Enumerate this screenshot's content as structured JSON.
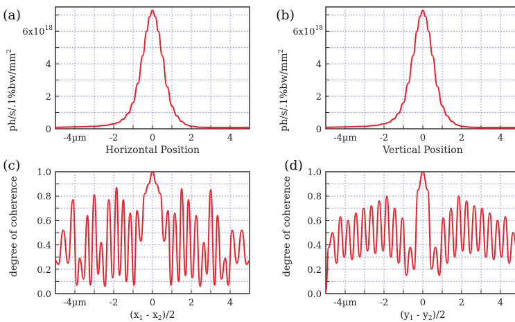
{
  "chart_data": [
    {
      "panel": "(a)",
      "type": "line",
      "xlabel": "Horizontal Position",
      "ylabel": "ph/s/.1%bw/mm",
      "ylabel_sup": "2",
      "y_exponent_label": "6x10",
      "y_exponent_sup": "18",
      "xlim": [
        -5,
        5
      ],
      "ylim": [
        0,
        7.5e+18
      ],
      "xticks": [
        "-4µm",
        "-2",
        "0",
        "2",
        "4"
      ],
      "yticks": [
        "0",
        "2",
        "4",
        "6x10"
      ],
      "grid": true,
      "color": "#e8202a",
      "x": [
        -5,
        -4,
        -3,
        -2.5,
        -2,
        -1.75,
        -1.5,
        -1.25,
        -1,
        -0.75,
        -0.5,
        -0.3,
        -0.15,
        0,
        0.15,
        0.3,
        0.5,
        0.75,
        1,
        1.25,
        1.5,
        1.75,
        2,
        2.5,
        3,
        4,
        5
      ],
      "y": [
        1e+17,
        1.2e+17,
        1.5e+17,
        2e+17,
        3e+17,
        4e+17,
        6e+17,
        9.5e+17,
        1.6e+18,
        2.8e+18,
        4.5e+18,
        6e+18,
        6.9e+18,
        7.3e+18,
        6.9e+18,
        6e+18,
        4.5e+18,
        2.6e+18,
        1.4e+18,
        8e+17,
        4.5e+17,
        2.5e+17,
        1.5e+17,
        1e+17,
        8e+16,
        8e+16,
        8e+16
      ]
    },
    {
      "panel": "(b)",
      "type": "line",
      "xlabel": "Vertical Position",
      "ylabel": "ph/s/.1%bw/mm",
      "ylabel_sup": "2",
      "y_exponent_label": "6x10",
      "y_exponent_sup": "18",
      "xlim": [
        -5,
        5
      ],
      "ylim": [
        0,
        7.5e+18
      ],
      "xticks": [
        "-4µm",
        "-2",
        "0",
        "2",
        "4"
      ],
      "yticks": [
        "0",
        "2",
        "4",
        "6x10"
      ],
      "grid": true,
      "color": "#e8202a",
      "x": [
        -5,
        -4,
        -3,
        -2.5,
        -2,
        -1.75,
        -1.5,
        -1.25,
        -1,
        -0.75,
        -0.5,
        -0.3,
        -0.15,
        0,
        0.15,
        0.3,
        0.5,
        0.75,
        1,
        1.25,
        1.5,
        1.75,
        2,
        2.5,
        3,
        4,
        5
      ],
      "y": [
        1e+17,
        1.2e+17,
        1.5e+17,
        2e+17,
        3e+17,
        4e+17,
        6e+17,
        9.5e+17,
        1.6e+18,
        2.8e+18,
        4.5e+18,
        6e+18,
        6.9e+18,
        7.3e+18,
        6.9e+18,
        6e+18,
        4.5e+18,
        2.6e+18,
        1.4e+18,
        8e+17,
        4.5e+17,
        2.5e+17,
        1.5e+17,
        1e+17,
        8e+16,
        8e+16,
        8e+16
      ]
    },
    {
      "panel": "(c)",
      "type": "line",
      "xlabel": "(x",
      "xlabel_sub1": "1",
      "xlabel_mid": " - x",
      "xlabel_sub2": "2",
      "xlabel_end": ")/2",
      "ylabel": "degree of coherence",
      "xlim": [
        -5,
        5
      ],
      "ylim": [
        0,
        1.0
      ],
      "xticks": [
        "-4µm",
        "-2",
        "0",
        "2",
        "4"
      ],
      "yticks": [
        "0.0",
        "0.2",
        "0.4",
        "0.6",
        "0.8",
        "1.0"
      ],
      "grid": true,
      "color": "#e8202a",
      "x": [
        -5,
        -4.85,
        -4.6,
        -4.35,
        -4.1,
        -3.9,
        -3.75,
        -3.55,
        -3.35,
        -3.2,
        -3.0,
        -2.8,
        -2.65,
        -2.45,
        -2.25,
        -2.05,
        -1.85,
        -1.7,
        -1.5,
        -1.35,
        -1.15,
        -0.95,
        -0.8,
        -0.6,
        -0.4,
        -0.2,
        0,
        0.2,
        0.4,
        0.6,
        0.8,
        0.95,
        1.15,
        1.35,
        1.5,
        1.7,
        1.85,
        2.05,
        2.25,
        2.45,
        2.65,
        2.8,
        3.0,
        3.2,
        3.35,
        3.55,
        3.75,
        3.9,
        4.1,
        4.35,
        4.6,
        4.85,
        5
      ],
      "y": [
        0.27,
        0.24,
        0.52,
        0.25,
        0.77,
        0.07,
        0.29,
        0.12,
        0.64,
        0.07,
        0.81,
        0.16,
        0.42,
        0.06,
        0.77,
        0.13,
        0.87,
        0.15,
        0.77,
        0.1,
        0.66,
        0.07,
        0.68,
        0.43,
        0.82,
        0.9,
        1.0,
        0.9,
        0.82,
        0.43,
        0.68,
        0.07,
        0.66,
        0.1,
        0.86,
        0.15,
        0.77,
        0.13,
        0.64,
        0.06,
        0.42,
        0.16,
        0.85,
        0.07,
        0.64,
        0.12,
        0.29,
        0.07,
        0.52,
        0.25,
        0.52,
        0.24,
        0.27
      ]
    },
    {
      "panel": "(d)",
      "type": "line",
      "xlabel": "(y",
      "xlabel_sub1": "1",
      "xlabel_mid": " - y",
      "xlabel_sub2": "2",
      "xlabel_end": ")/2",
      "ylabel": "degree of coherence",
      "xlim": [
        -5,
        5
      ],
      "ylim": [
        0,
        1.0
      ],
      "xticks": [
        "-4µm",
        "-2",
        "0",
        "2",
        "4"
      ],
      "yticks": [
        "0.0",
        "0.2",
        "0.4",
        "0.6",
        "0.8",
        "1.0"
      ],
      "grid": true,
      "color": "#e8202a",
      "x": [
        -5,
        -4.85,
        -4.65,
        -4.45,
        -4.25,
        -4.05,
        -3.85,
        -3.65,
        -3.45,
        -3.25,
        -3.05,
        -2.85,
        -2.65,
        -2.45,
        -2.25,
        -2.05,
        -1.85,
        -1.65,
        -1.45,
        -1.25,
        -1.05,
        -0.85,
        -0.65,
        -0.45,
        -0.25,
        0,
        0.25,
        0.45,
        0.65,
        0.85,
        1.05,
        1.25,
        1.45,
        1.65,
        1.85,
        2.05,
        2.25,
        2.45,
        2.65,
        2.85,
        3.05,
        3.25,
        3.45,
        3.65,
        3.85,
        4.05,
        4.25,
        4.45,
        4.65,
        4.85,
        5
      ],
      "y": [
        0.02,
        0.38,
        0.5,
        0.25,
        0.63,
        0.3,
        0.6,
        0.28,
        0.66,
        0.3,
        0.7,
        0.35,
        0.72,
        0.33,
        0.76,
        0.35,
        0.8,
        0.3,
        0.7,
        0.25,
        0.62,
        0.15,
        0.38,
        0.2,
        0.85,
        1.0,
        0.85,
        0.2,
        0.38,
        0.15,
        0.62,
        0.25,
        0.7,
        0.3,
        0.8,
        0.35,
        0.76,
        0.33,
        0.72,
        0.35,
        0.7,
        0.3,
        0.66,
        0.28,
        0.6,
        0.3,
        0.63,
        0.25,
        0.5,
        0.38,
        0.42
      ]
    }
  ]
}
